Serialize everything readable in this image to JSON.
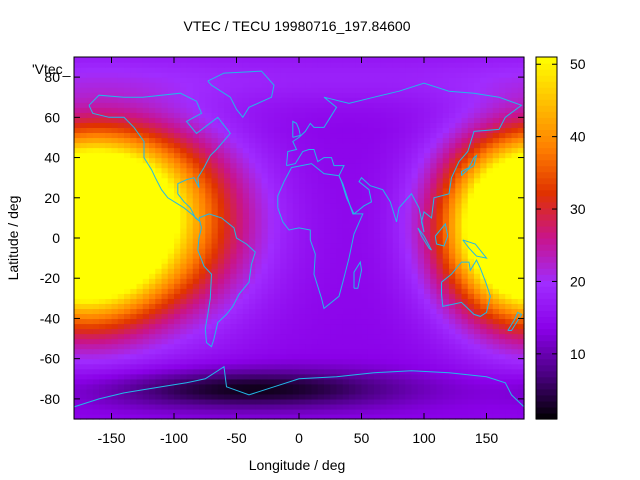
{
  "chart_data": {
    "type": "heatmap",
    "title": "VTEC / TECU 19980716_197.84600",
    "xlabel": "Longitude / deg",
    "ylabel": "Latitude / deg",
    "xlim": [
      -180,
      180
    ],
    "ylim": [
      -90,
      90
    ],
    "x_ticks": [
      -150,
      -100,
      -50,
      0,
      50,
      100,
      150
    ],
    "y_ticks": [
      -80,
      -60,
      -40,
      -20,
      0,
      20,
      40,
      60,
      80
    ],
    "legend_key": "'Vtec_",
    "colorbar": {
      "range": [
        1,
        51
      ],
      "ticks": [
        10,
        20,
        30,
        40,
        50
      ],
      "palette": [
        "#000000",
        "#4b0082",
        "#8a00e8",
        "#a02cff",
        "#c8148c",
        "#e03200",
        "#ff8000",
        "#ffc000",
        "#ffff00"
      ],
      "placement": "right"
    },
    "features": [
      {
        "lon": -170,
        "lat": 0,
        "peak": 51,
        "lon_spread": 40,
        "lat_spread": 28
      },
      {
        "lon": -120,
        "lat": 5,
        "peak": 42,
        "lon_spread": 55,
        "lat_spread": 30
      },
      {
        "lon": 160,
        "lat": 5,
        "peak": 36,
        "lon_spread": 40,
        "lat_spread": 28
      },
      {
        "lon": -150,
        "lat": 30,
        "peak": 28,
        "lon_spread": 50,
        "lat_spread": 20
      }
    ],
    "background_vtec": 14,
    "polar_minimum_vtec": 2,
    "grid": false,
    "overlay": "coastlines"
  }
}
